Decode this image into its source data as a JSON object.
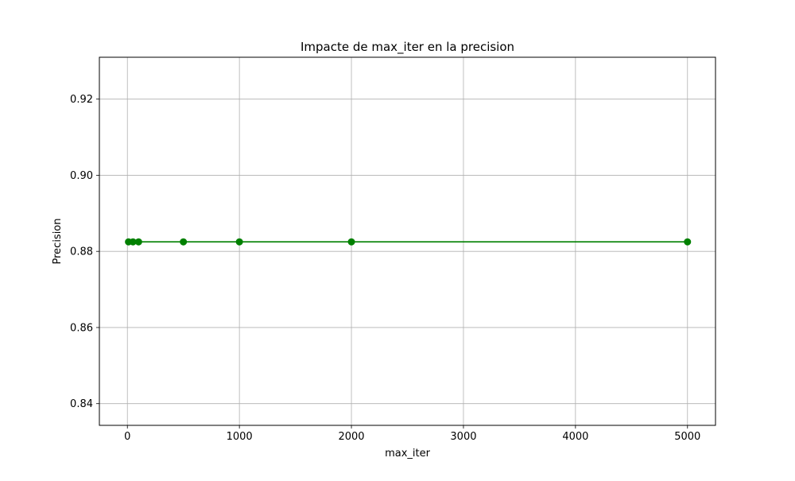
{
  "chart_data": {
    "type": "line",
    "title": "Impacte de max_iter en la precision",
    "xlabel": "max_iter",
    "ylabel": "Precision",
    "xlim": [
      -250,
      5250
    ],
    "ylim": [
      0.8343,
      0.931
    ],
    "xticks": [
      0,
      1000,
      2000,
      3000,
      4000,
      5000
    ],
    "xtick_labels": [
      "0",
      "1000",
      "2000",
      "3000",
      "4000",
      "5000"
    ],
    "yticks": [
      0.84,
      0.86,
      0.88,
      0.9,
      0.92
    ],
    "ytick_labels": [
      "0.84",
      "0.86",
      "0.88",
      "0.90",
      "0.92"
    ],
    "grid": true,
    "series": [
      {
        "color": "#008000",
        "marker": "circle",
        "x": [
          10,
          50,
          100,
          500,
          1000,
          2000,
          5000
        ],
        "y": [
          0.8825,
          0.8825,
          0.8825,
          0.8825,
          0.8825,
          0.8825,
          0.8825
        ]
      }
    ]
  }
}
